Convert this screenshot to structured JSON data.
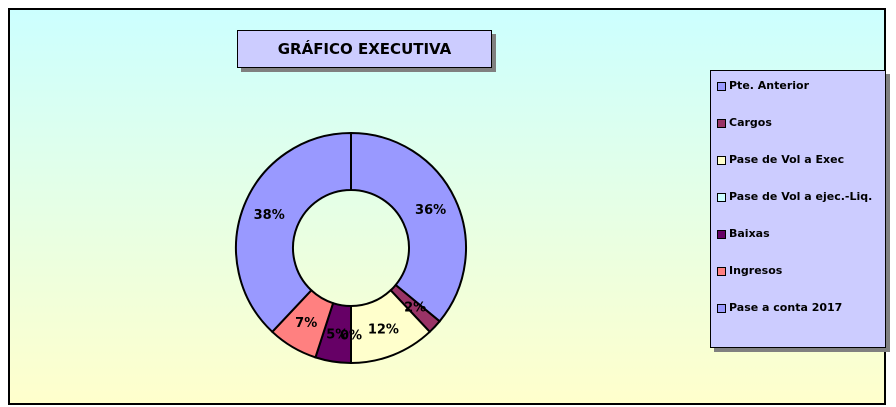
{
  "chart_data": {
    "type": "donut",
    "title": "GRÁFICO EXECUTIVA",
    "categories": [
      "Pte. Anterior",
      "Cargos",
      "Pase de Vol a Exec",
      "Pase de Vol a ejec.-Liq.",
      "Baixas",
      "Ingresos",
      "Pase a conta 2017"
    ],
    "values": [
      36,
      2,
      12,
      0,
      5,
      7,
      38
    ],
    "value_labels": [
      "36%",
      "2%",
      "12%",
      "0%",
      "5%",
      "7%",
      "38%"
    ],
    "colors": [
      "#9999ff",
      "#993366",
      "#ffffcc",
      "#ccffff",
      "#660066",
      "#ff8080",
      "#9999ff"
    ],
    "legend": "right"
  }
}
